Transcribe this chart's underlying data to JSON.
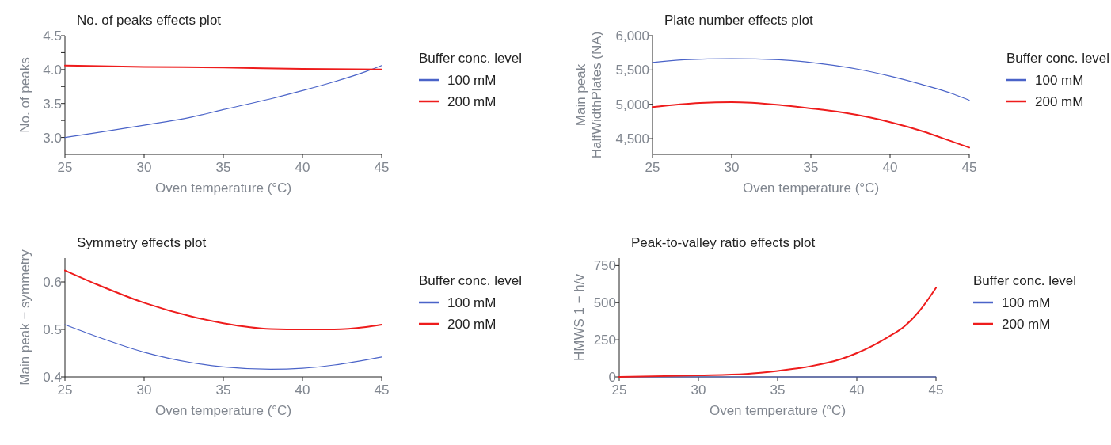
{
  "chart_data": [
    {
      "type": "line",
      "title": "No. of peaks effects plot",
      "xlabel": "Oven temperature (°C)",
      "ylabel": "No. of peaks",
      "legend_title": "Buffer conc. level",
      "legend": "right",
      "xlim": [
        25,
        45
      ],
      "xticks": [
        25,
        30,
        35,
        40,
        45
      ],
      "ylim": [
        2.75,
        4.5
      ],
      "yticks": [
        {
          "value": 3,
          "label": "3.0"
        },
        {
          "value": 3.25,
          "label": null
        },
        {
          "value": 3.5,
          "label": "3.5"
        },
        {
          "value": 3.75,
          "label": null
        },
        {
          "value": 4,
          "label": "4.0"
        },
        {
          "value": 4.25,
          "label": null
        },
        {
          "value": 4.5,
          "label": "4.5"
        }
      ],
      "series": [
        {
          "name": "100 mM",
          "color": "#4a63c8",
          "x": [
            25,
            27,
            30,
            33,
            35,
            38,
            40,
            42,
            44,
            45
          ],
          "values": [
            3.0,
            3.07,
            3.18,
            3.3,
            3.41,
            3.57,
            3.69,
            3.82,
            3.97,
            4.06
          ]
        },
        {
          "name": "200 mM",
          "color": "#ee1c1c",
          "x": [
            25,
            30,
            35,
            40,
            45
          ],
          "values": [
            4.06,
            4.04,
            4.03,
            4.01,
            4.0
          ]
        }
      ]
    },
    {
      "type": "line",
      "title": "Plate number effects plot",
      "xlabel": "Oven temperature (°C)",
      "ylabel": "Main peak\nHalfWidthPlates (NA)",
      "legend_title": "Buffer conc. level",
      "legend": "right",
      "xlim": [
        25,
        45
      ],
      "xticks": [
        25,
        30,
        35,
        40,
        45
      ],
      "ylim": [
        4270,
        6000
      ],
      "yticks": [
        {
          "value": 4500,
          "label": "4,500"
        },
        {
          "value": 5000,
          "label": "5,000"
        },
        {
          "value": 5500,
          "label": "5,500"
        },
        {
          "value": 6000,
          "label": "6,000"
        }
      ],
      "series": [
        {
          "name": "100 mM",
          "color": "#4a63c8",
          "x": [
            25,
            27,
            30,
            33,
            35,
            38,
            40,
            42,
            44,
            45
          ],
          "values": [
            5610,
            5650,
            5665,
            5650,
            5610,
            5510,
            5410,
            5290,
            5150,
            5060
          ]
        },
        {
          "name": "200 mM",
          "color": "#ee1c1c",
          "x": [
            25,
            28,
            30,
            33,
            35,
            37,
            40,
            42,
            44,
            45
          ],
          "values": [
            4960,
            5020,
            5030,
            4990,
            4940,
            4880,
            4740,
            4610,
            4450,
            4370
          ]
        }
      ]
    },
    {
      "type": "line",
      "title": "Symmetry effects plot",
      "xlabel": "Oven temperature (°C)",
      "ylabel": "Main peak − symmetry",
      "legend_title": "Buffer conc. level",
      "legend": "right",
      "xlim": [
        25,
        45
      ],
      "xticks": [
        25,
        30,
        35,
        40,
        45
      ],
      "ylim": [
        0.4,
        0.65
      ],
      "yticks": [
        0.4,
        0.5,
        0.6
      ],
      "series": [
        {
          "name": "100 mM",
          "color": "#4a63c8",
          "x": [
            25,
            27,
            30,
            33,
            35,
            38,
            40,
            42,
            45
          ],
          "values": [
            0.51,
            0.485,
            0.452,
            0.43,
            0.421,
            0.416,
            0.418,
            0.425,
            0.442
          ]
        },
        {
          "name": "200 mM",
          "color": "#ee1c1c",
          "x": [
            25,
            27,
            30,
            33,
            35,
            38,
            40,
            42,
            44,
            45
          ],
          "values": [
            0.624,
            0.595,
            0.556,
            0.527,
            0.513,
            0.501,
            0.5,
            0.5,
            0.505,
            0.51
          ]
        }
      ]
    },
    {
      "type": "line",
      "title": "Peak-to-valley ratio effects plot",
      "xlabel": "Oven temperature (°C)",
      "ylabel": "HMWS 1 − h/v",
      "legend_title": "Buffer conc. level",
      "legend": "right",
      "xlim": [
        25,
        45
      ],
      "xticks": [
        25,
        30,
        35,
        40,
        45
      ],
      "ylim": [
        0,
        800
      ],
      "yticks": [
        0,
        250,
        500,
        750
      ],
      "series": [
        {
          "name": "100 mM",
          "color": "#4a63c8",
          "x": [
            25,
            30,
            35,
            40,
            45
          ],
          "values": [
            0,
            0,
            0,
            0,
            0
          ]
        },
        {
          "name": "200 mM",
          "color": "#ee1c1c",
          "x": [
            25,
            30,
            33,
            35,
            37,
            39,
            40,
            41,
            42,
            43,
            44,
            45
          ],
          "values": [
            0,
            10,
            20,
            40,
            70,
            120,
            160,
            210,
            270,
            340,
            450,
            600
          ]
        }
      ]
    }
  ]
}
